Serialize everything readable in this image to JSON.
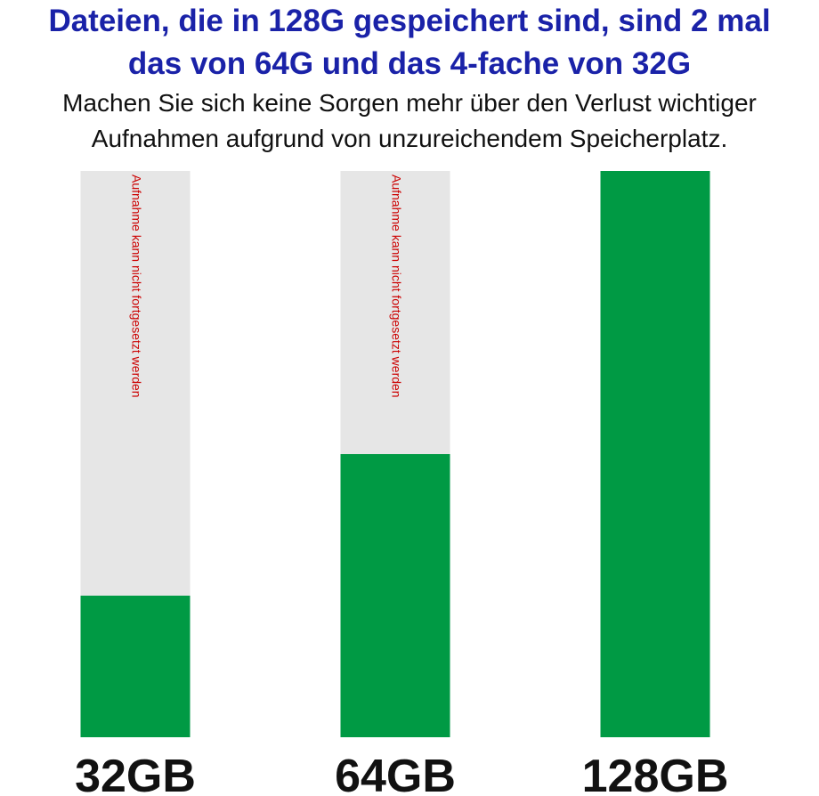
{
  "header": {
    "title_line1": "Dateien, die in 128G gespeichert sind, sind 2 mal",
    "title_line2": "das von 64G und das 4-fache von 32G",
    "subtitle_line1": "Machen Sie sich keine Sorgen mehr über den Verlust wichtiger",
    "subtitle_line2": "Aufnahmen aufgrund von unzureichendem Speicherplatz."
  },
  "colors": {
    "title": "#1a22a8",
    "fill": "#009a44",
    "track": "#e6e6e6",
    "warning": "#cc0000",
    "category_label": "#111111"
  },
  "chart_data": {
    "type": "bar",
    "categories": [
      "32GB",
      "64GB",
      "128GB"
    ],
    "values": [
      25,
      50,
      100
    ],
    "ylim": [
      0,
      100
    ],
    "grid": false,
    "legend": "none",
    "annotations": [
      "Aufnahme kann nicht fortgesetzt werden",
      "Aufnahme kann nicht fortgesetzt werden",
      ""
    ]
  }
}
